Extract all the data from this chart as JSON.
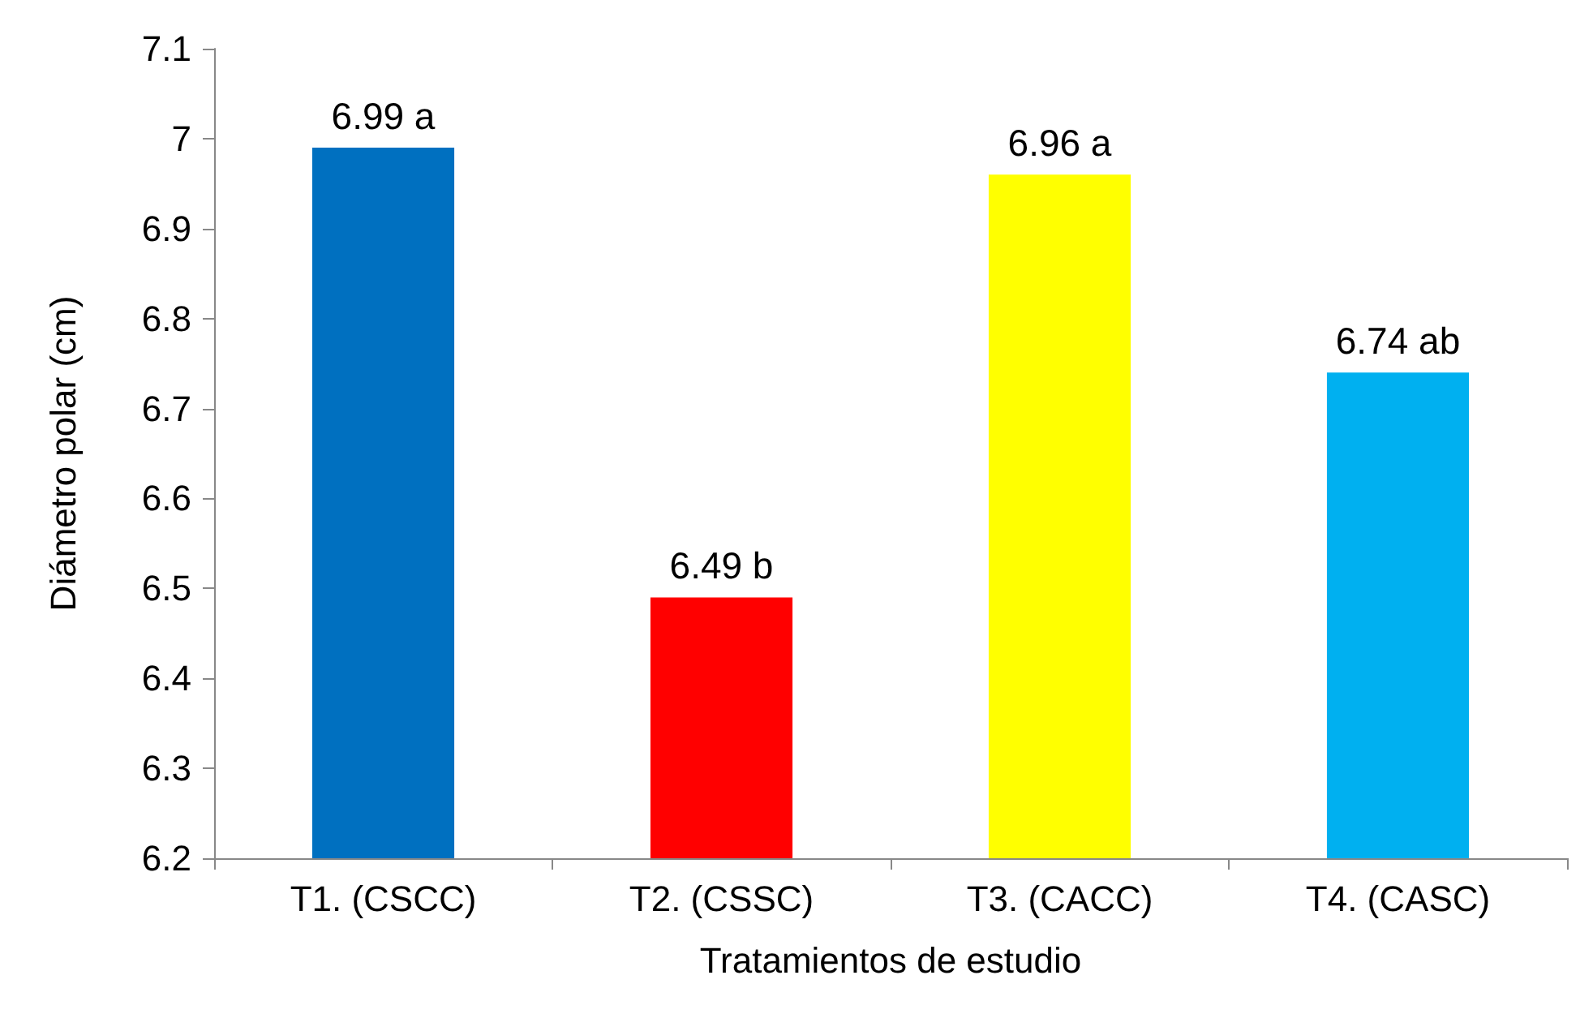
{
  "chart_data": {
    "type": "bar",
    "xlabel": "Tratamientos de estudio",
    "ylabel": "Diámetro polar (cm)",
    "categories": [
      "T1. (CSCC)",
      "T2. (CSSC)",
      "T3. (CACC)",
      "T4. (CASC)"
    ],
    "values": [
      6.99,
      6.49,
      6.96,
      6.74
    ],
    "colors": [
      "#0070c0",
      "#ff0000",
      "#ffff00",
      "#00b0f0"
    ],
    "value_labels": [
      "6.99 a",
      "6.49 b",
      "6.96 a",
      "6.74 ab"
    ],
    "ylim": [
      6.2,
      7.1
    ],
    "yticks": [
      6.2,
      6.3,
      6.4,
      6.5,
      6.6,
      6.7,
      6.8,
      6.9,
      7,
      7.1
    ],
    "grid": false
  }
}
